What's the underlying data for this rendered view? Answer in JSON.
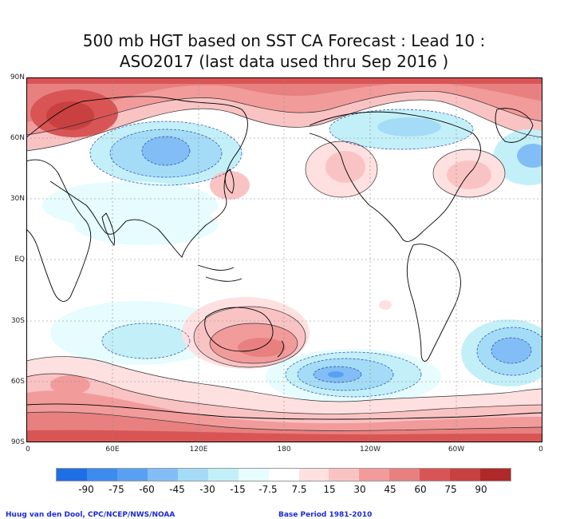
{
  "title": {
    "line1": "500 mb HGT based on SST CA Forecast : Lead 10 :",
    "line2": "ASO2017 (last data used thru Sep 2016 )"
  },
  "map": {
    "lat_labels": [
      "90N",
      "60N",
      "30N",
      "EQ",
      "30S",
      "60S",
      "90S"
    ],
    "lon_labels": [
      "0",
      "60E",
      "120E",
      "180",
      "120W",
      "60W",
      "0"
    ]
  },
  "legend": {
    "labels": [
      "-90",
      "-75",
      "-60",
      "-45",
      "-30",
      "-15",
      "-7.5",
      "7.5",
      "15",
      "30",
      "45",
      "60",
      "75",
      "90"
    ],
    "colors": {
      "neg": [
        "#1e6ee6",
        "#3c8cf0",
        "#5aa0f2",
        "#82bef5",
        "#a4dcf7",
        "#c3f0f8",
        "#e6fcff"
      ],
      "pos": [
        "#ffe0e0",
        "#fac3c3",
        "#f29b9b",
        "#e88080",
        "#d95555",
        "#c94040",
        "#b02828"
      ]
    }
  },
  "credits": {
    "left": "Huug van den Dool, CPC/NCEP/NWS/NOAA",
    "right": "Base Period 1981-2010"
  }
}
